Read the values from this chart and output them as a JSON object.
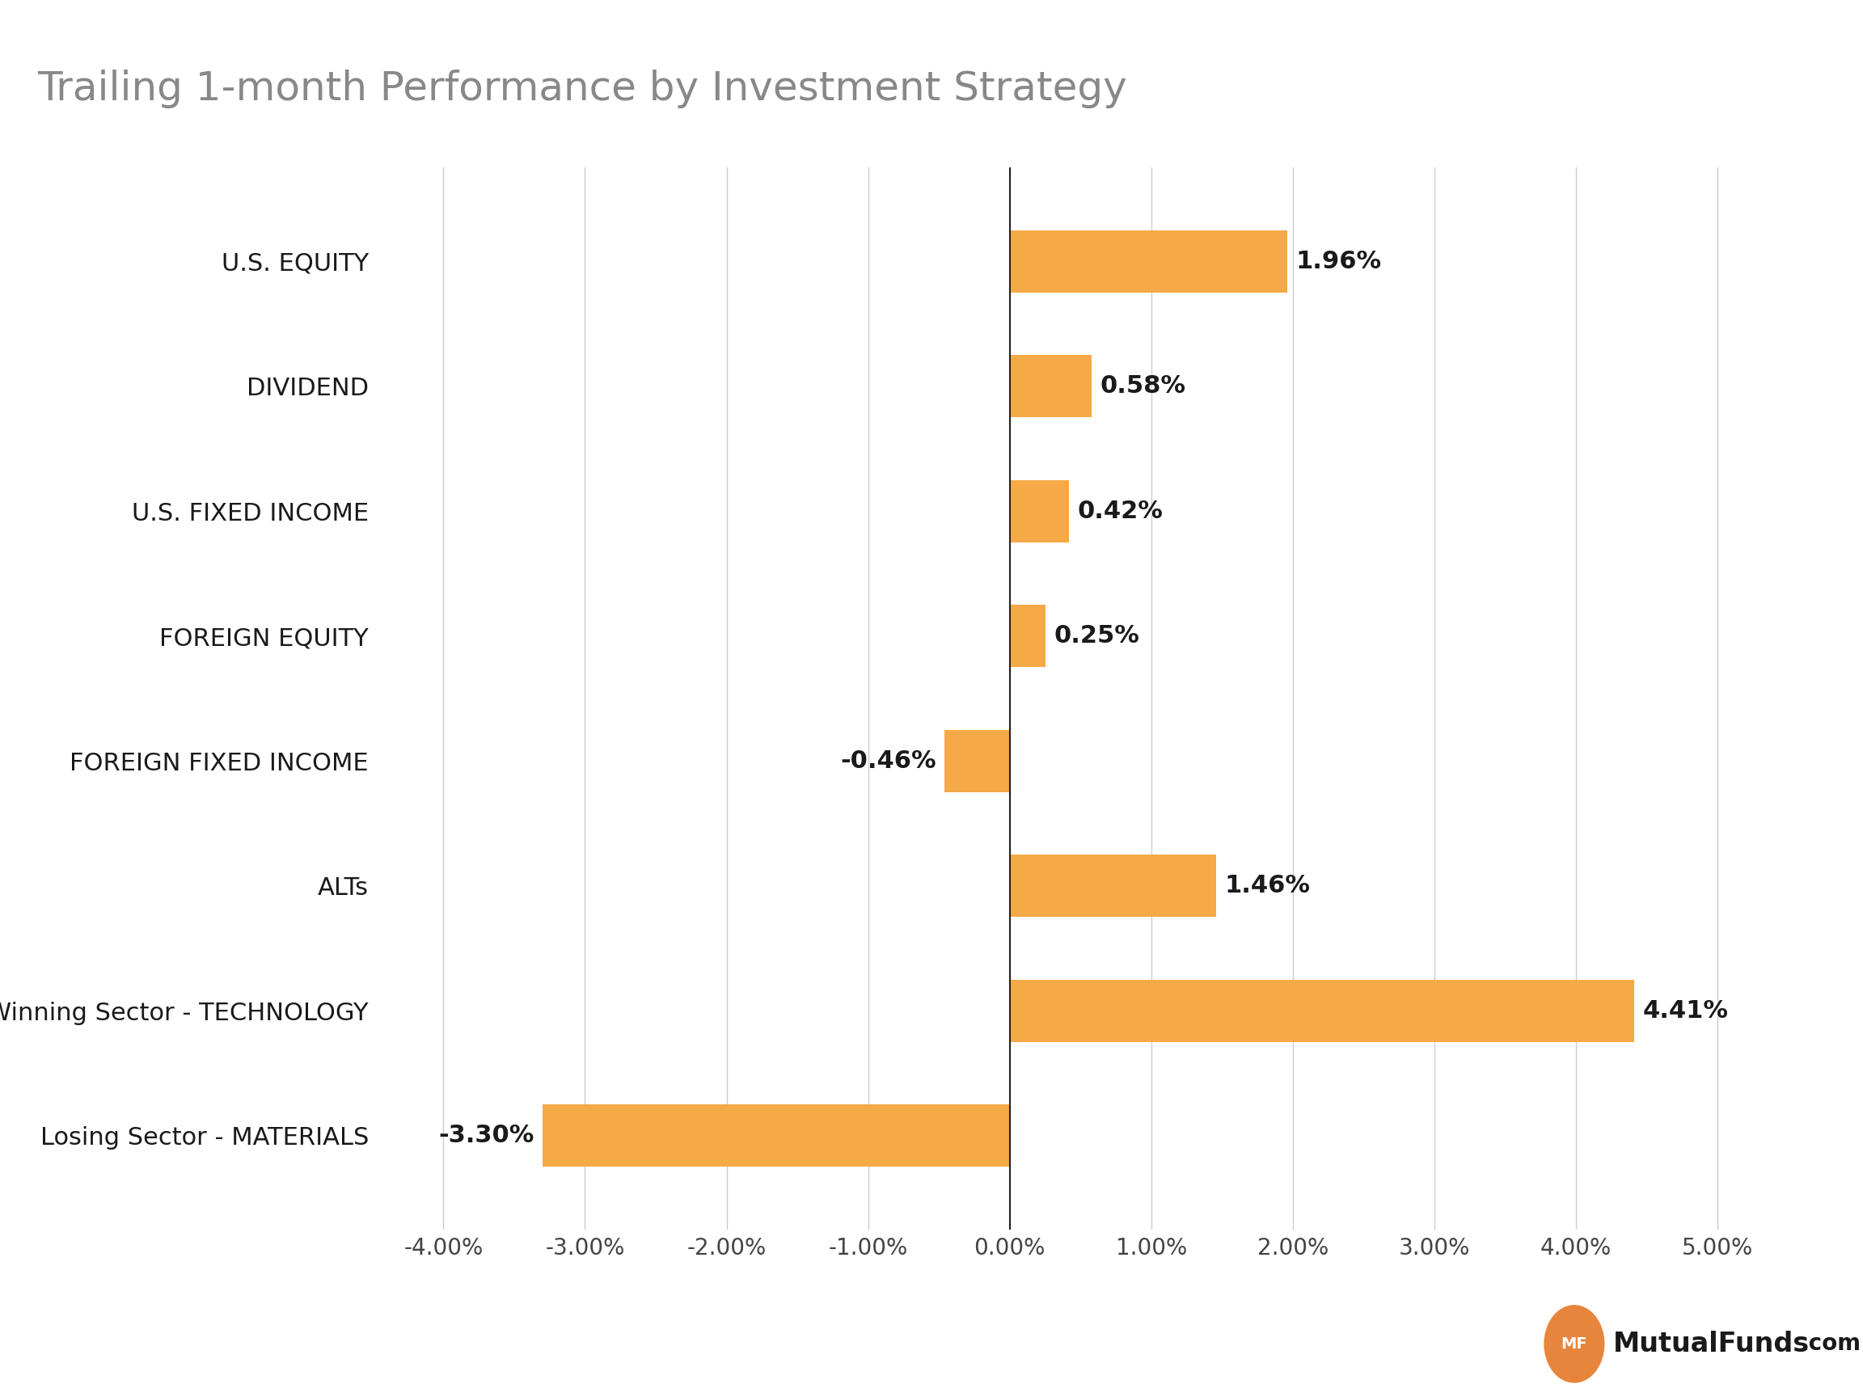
{
  "title": "Trailing 1-month Performance by Investment Strategy",
  "categories": [
    "U.S. EQUITY",
    "DIVIDEND",
    "U.S. FIXED INCOME",
    "FOREIGN EQUITY",
    "FOREIGN FIXED INCOME",
    "ALTs",
    "Winning Sector - TECHNOLOGY",
    "Losing Sector - MATERIALS"
  ],
  "values": [
    1.96,
    0.58,
    0.42,
    0.25,
    -0.46,
    1.46,
    4.41,
    -3.3
  ],
  "bar_color": "#F5A947",
  "label_color": "#1a1a1a",
  "title_color": "#888888",
  "axis_color": "#cccccc",
  "background_color": "#ffffff",
  "xlim": [
    -4.5,
    5.5
  ],
  "xtick_values": [
    -4.0,
    -3.0,
    -2.0,
    -1.0,
    0.0,
    1.0,
    2.0,
    3.0,
    4.0,
    5.0
  ],
  "title_fontsize": 36,
  "label_fontsize": 22,
  "tick_fontsize": 20,
  "value_fontsize": 22,
  "bar_height": 0.5
}
